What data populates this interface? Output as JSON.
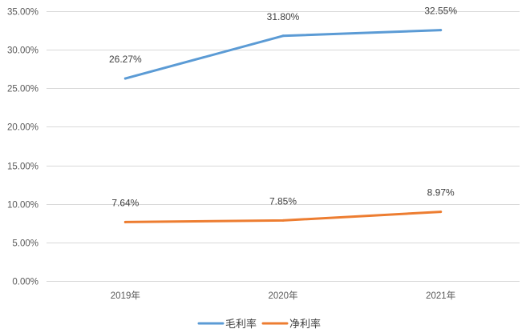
{
  "chart_data": {
    "type": "line",
    "title": "",
    "xlabel": "",
    "ylabel": "",
    "categories": [
      "2019年",
      "2020年",
      "2021年"
    ],
    "series": [
      {
        "name": "毛利率",
        "color": "#5b9bd5",
        "values": [
          26.27,
          31.8,
          32.55
        ],
        "labels": [
          "26.27%",
          "31.80%",
          "32.55%"
        ]
      },
      {
        "name": "净利率",
        "color": "#ed7d31",
        "values": [
          7.64,
          7.85,
          8.97
        ],
        "labels": [
          "7.64%",
          "7.85%",
          "8.97%"
        ]
      }
    ],
    "ylim": [
      0,
      35
    ],
    "yticks": [
      0,
      5,
      10,
      15,
      20,
      25,
      30,
      35
    ],
    "ytick_labels": [
      "0.00%",
      "5.00%",
      "10.00%",
      "15.00%",
      "20.00%",
      "25.00%",
      "30.00%",
      "35.00%"
    ],
    "grid": true,
    "legend_position": "bottom"
  }
}
